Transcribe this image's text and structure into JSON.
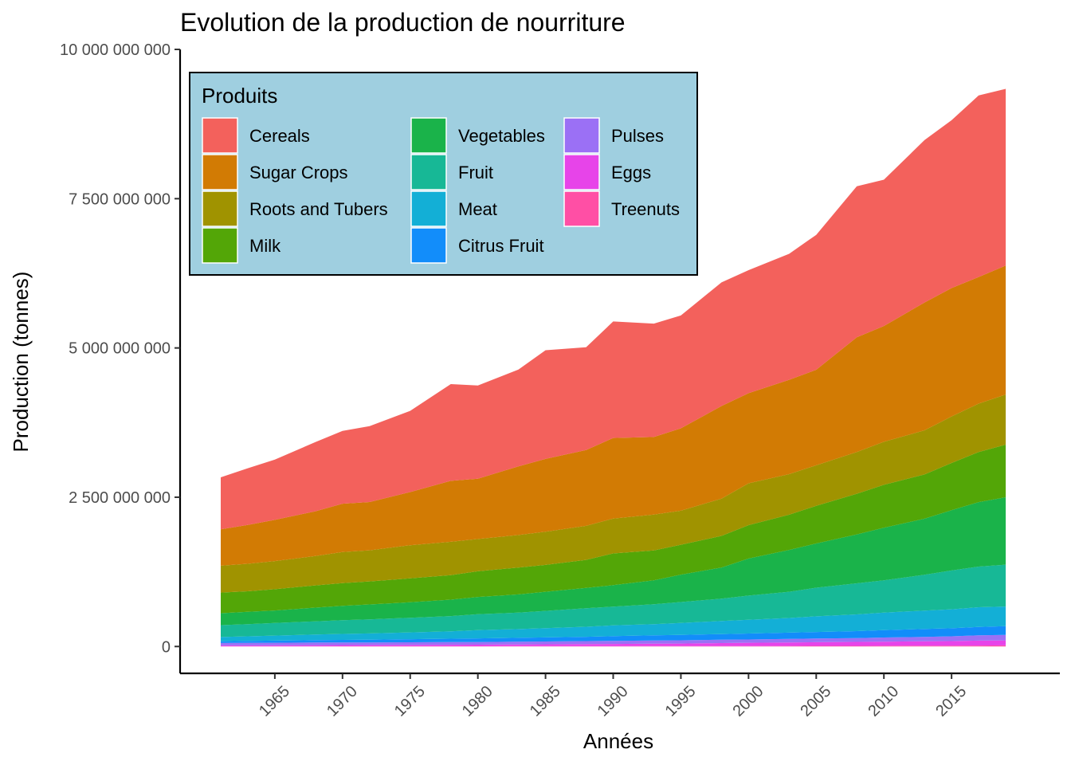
{
  "chart_data": {
    "type": "area",
    "stacked": true,
    "title": "Evolution de la production de nourriture",
    "xlabel": "Années",
    "ylabel": "Production (tonnes)",
    "xlim": [
      1958,
      2023
    ],
    "ylim": [
      -450000000,
      10000000000
    ],
    "x_ticks": [
      1965,
      1970,
      1975,
      1980,
      1985,
      1990,
      1995,
      2000,
      2005,
      2010,
      2015
    ],
    "x_tick_labels": [
      "1965",
      "1970",
      "1975",
      "1980",
      "1985",
      "1990",
      "1995",
      "2000",
      "2005",
      "2010",
      "2015"
    ],
    "y_ticks": [
      0,
      2500000000,
      5000000000,
      7500000000,
      10000000000
    ],
    "y_tick_labels": [
      "0",
      "2 500 000 000",
      "5 000 000 000",
      "7 500 000 000",
      "10 000 000 000"
    ],
    "grid": false,
    "legend": {
      "title": "Produits",
      "position": "top-left inside",
      "background": "#9fcfe0",
      "columns": [
        [
          "Cereals",
          "Sugar Crops",
          "Roots and Tubers",
          "Milk"
        ],
        [
          "Vegetables",
          "Fruit",
          "Meat",
          "Citrus Fruit"
        ],
        [
          "Pulses",
          "Eggs",
          "Treenuts"
        ]
      ]
    },
    "x": [
      1961,
      1963,
      1965,
      1968,
      1970,
      1972,
      1975,
      1978,
      1980,
      1983,
      1985,
      1988,
      1990,
      1993,
      1995,
      1998,
      2000,
      2003,
      2005,
      2008,
      2010,
      2013,
      2015,
      2017,
      2019
    ],
    "series": [
      {
        "name": "Treenuts",
        "color": "#ff4fa5",
        "values": [
          3000000,
          3000000,
          3000000,
          3000000,
          4000000,
          4000000,
          4000000,
          4000000,
          4000000,
          5000000,
          5000000,
          5000000,
          5000000,
          6000000,
          6000000,
          7000000,
          8000000,
          9000000,
          10000000,
          11000000,
          12000000,
          14000000,
          15000000,
          16000000,
          18000000
        ]
      },
      {
        "name": "Eggs",
        "color": "#e744e9",
        "values": [
          15000000,
          16000000,
          17000000,
          19000000,
          20000000,
          21000000,
          23000000,
          25000000,
          27000000,
          30000000,
          32000000,
          35000000,
          37000000,
          40000000,
          43000000,
          50000000,
          54000000,
          59000000,
          62000000,
          66000000,
          69000000,
          73000000,
          76000000,
          82000000,
          85000000
        ]
      },
      {
        "name": "Pulses",
        "color": "#9b70f5",
        "values": [
          40000000,
          42000000,
          43000000,
          44000000,
          43000000,
          42000000,
          44000000,
          44000000,
          43000000,
          45000000,
          47000000,
          50000000,
          53000000,
          55000000,
          55000000,
          56000000,
          55000000,
          58000000,
          61000000,
          63000000,
          70000000,
          74000000,
          79000000,
          90000000,
          92000000
        ]
      },
      {
        "name": "Citrus Fruit",
        "color": "#128dfa",
        "values": [
          30000000,
          33000000,
          36000000,
          40000000,
          44000000,
          47000000,
          52000000,
          58000000,
          62000000,
          65000000,
          68000000,
          72000000,
          78000000,
          85000000,
          90000000,
          95000000,
          100000000,
          106000000,
          110000000,
          118000000,
          124000000,
          132000000,
          135000000,
          140000000,
          145000000
        ]
      },
      {
        "name": "Meat",
        "color": "#13afd6",
        "values": [
          70000000,
          76000000,
          84000000,
          95000000,
          100000000,
          105000000,
          113000000,
          122000000,
          137000000,
          147000000,
          155000000,
          169000000,
          180000000,
          187000000,
          200000000,
          219000000,
          230000000,
          245000000,
          262000000,
          280000000,
          293000000,
          308000000,
          318000000,
          330000000,
          330000000
        ]
      },
      {
        "name": "Fruit",
        "color": "#17b896",
        "values": [
          200000000,
          205000000,
          210000000,
          220000000,
          230000000,
          235000000,
          245000000,
          256000000,
          267000000,
          275000000,
          290000000,
          310000000,
          315000000,
          335000000,
          350000000,
          375000000,
          406000000,
          440000000,
          480000000,
          520000000,
          540000000,
          600000000,
          650000000,
          680000000,
          700000000
        ]
      },
      {
        "name": "Vegetables",
        "color": "#1ab34a",
        "values": [
          200000000,
          205000000,
          210000000,
          230000000,
          240000000,
          250000000,
          260000000,
          275000000,
          290000000,
          305000000,
          320000000,
          340000000,
          360000000,
          400000000,
          460000000,
          520000000,
          620000000,
          700000000,
          740000000,
          820000000,
          880000000,
          940000000,
          1010000000,
          1080000000,
          1130000000
        ]
      },
      {
        "name": "Milk",
        "color": "#53a607",
        "values": [
          345000000,
          345000000,
          357000000,
          373000000,
          380000000,
          386000000,
          400000000,
          410000000,
          430000000,
          450000000,
          450000000,
          470000000,
          530000000,
          500000000,
          500000000,
          530000000,
          560000000,
          590000000,
          630000000,
          680000000,
          720000000,
          740000000,
          790000000,
          840000000,
          880000000
        ]
      },
      {
        "name": "Roots and Tubers",
        "color": "#a09300",
        "values": [
          450000000,
          460000000,
          470000000,
          490000000,
          520000000,
          520000000,
          555000000,
          560000000,
          540000000,
          545000000,
          555000000,
          570000000,
          585000000,
          600000000,
          570000000,
          625000000,
          700000000,
          680000000,
          680000000,
          700000000,
          720000000,
          740000000,
          780000000,
          810000000,
          840000000
        ]
      },
      {
        "name": "Sugar Crops",
        "color": "#d27b04",
        "values": [
          610000000,
          650000000,
          690000000,
          750000000,
          810000000,
          810000000,
          890000000,
          1020000000,
          1010000000,
          1150000000,
          1220000000,
          1270000000,
          1350000000,
          1300000000,
          1380000000,
          1550000000,
          1510000000,
          1580000000,
          1600000000,
          1920000000,
          1940000000,
          2140000000,
          2150000000,
          2120000000,
          2160000000
        ]
      },
      {
        "name": "Cereals",
        "color": "#f3615c",
        "values": [
          870000000,
          950000000,
          1010000000,
          1160000000,
          1220000000,
          1270000000,
          1360000000,
          1620000000,
          1560000000,
          1620000000,
          1820000000,
          1720000000,
          1950000000,
          1900000000,
          1890000000,
          2070000000,
          2060000000,
          2110000000,
          2260000000,
          2530000000,
          2450000000,
          2720000000,
          2810000000,
          3040000000,
          2960000000
        ]
      }
    ]
  }
}
